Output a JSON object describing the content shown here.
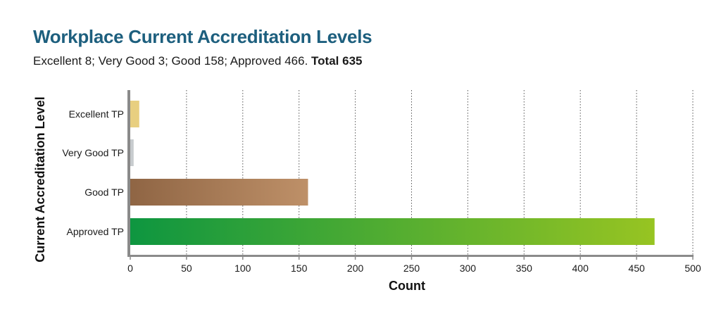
{
  "header": {
    "title": "Workplace Current Accreditation Levels",
    "subtitle_text": "Excellent 8; Very Good 3; Good 158; Approved 466. ",
    "subtitle_total": "Total 635"
  },
  "chart_data": {
    "type": "bar",
    "orientation": "horizontal",
    "categories": [
      "Excellent TP",
      "Very Good TP",
      "Good TP",
      "Approved TP"
    ],
    "values": [
      8,
      3,
      158,
      466
    ],
    "xlabel": "Count",
    "ylabel": "Current Accreditation Level",
    "xlim": [
      0,
      500
    ],
    "xticks": [
      "0",
      "50",
      "100",
      "150",
      "200",
      "250",
      "300",
      "350",
      "400",
      "450",
      "500"
    ],
    "grid": "vertical dotted",
    "colors": {
      "Excellent TP": [
        "#e8cf80",
        "#e8cf80"
      ],
      "Very Good TP": [
        "#c7cbce",
        "#c7cbce"
      ],
      "Good TP": [
        "#8f6544",
        "#be9068"
      ],
      "Approved TP": [
        "#0e9640",
        "#97c422"
      ]
    }
  }
}
